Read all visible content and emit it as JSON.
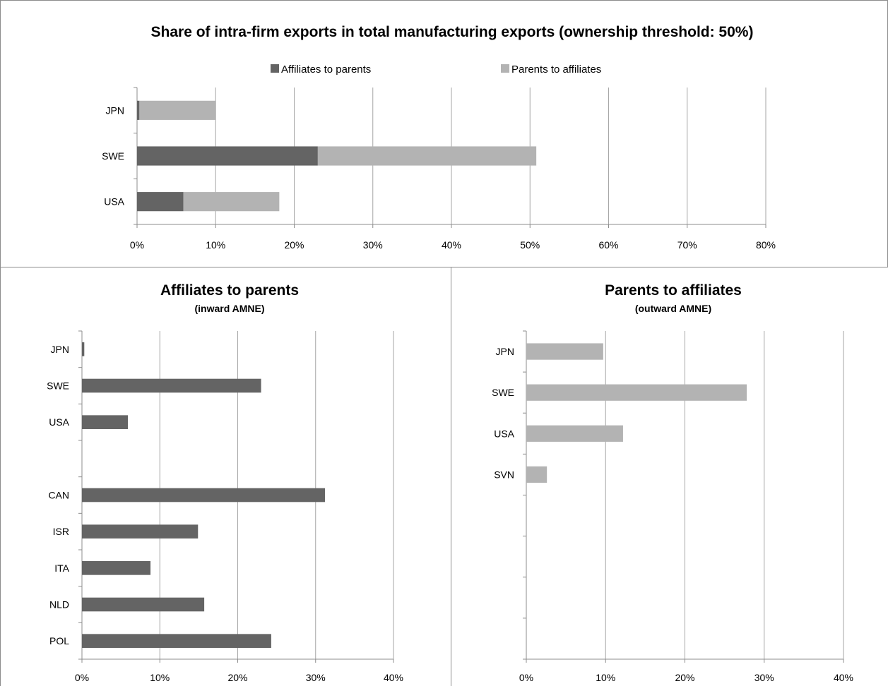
{
  "colors": {
    "affiliates_to_parents": "#646464",
    "parents_to_affiliates": "#b3b3b3",
    "gridline": "#a6a6a6",
    "axis": "#8c8c8c",
    "panel_border": "#8c8c8c"
  },
  "chart_data": [
    {
      "type": "bar",
      "orientation": "horizontal",
      "stacked": true,
      "title": "Share of intra-firm exports in total manufacturing exports (ownership threshold: 50%)",
      "categories": [
        "JPN",
        "SWE",
        "USA"
      ],
      "series": [
        {
          "name": "Affiliates to parents",
          "values": [
            0.3,
            23.0,
            5.9
          ]
        },
        {
          "name": "Parents to affiliates",
          "values": [
            9.7,
            27.8,
            12.2
          ]
        }
      ],
      "xlim": [
        0,
        80
      ],
      "xticks": [
        "0%",
        "10%",
        "20%",
        "30%",
        "40%",
        "50%",
        "60%",
        "70%",
        "80%"
      ],
      "legend_position": "top",
      "grid": "vertical"
    },
    {
      "type": "bar",
      "orientation": "horizontal",
      "title": "Affiliates to parents",
      "subtitle": "(inward AMNE)",
      "categories": [
        "JPN",
        "SWE",
        "USA",
        "",
        "CAN",
        "ISR",
        "ITA",
        "NLD",
        "POL"
      ],
      "series": [
        {
          "values": [
            0.3,
            23.0,
            5.9,
            null,
            31.2,
            14.9,
            8.8,
            15.7,
            24.3
          ]
        }
      ],
      "xlim": [
        0,
        40
      ],
      "xticks": [
        "0%",
        "10%",
        "20%",
        "30%",
        "40%"
      ],
      "grid": "vertical"
    },
    {
      "type": "bar",
      "orientation": "horizontal",
      "title": "Parents to affiliates",
      "subtitle": "(outward AMNE)",
      "categories": [
        "JPN",
        "SWE",
        "USA",
        "SVN",
        "",
        "",
        "",
        ""
      ],
      "series": [
        {
          "values": [
            9.7,
            27.8,
            12.2,
            2.6,
            null,
            null,
            null,
            null
          ]
        }
      ],
      "xlim": [
        0,
        40
      ],
      "xticks": [
        "0%",
        "10%",
        "20%",
        "30%",
        "40%"
      ],
      "grid": "vertical"
    }
  ]
}
